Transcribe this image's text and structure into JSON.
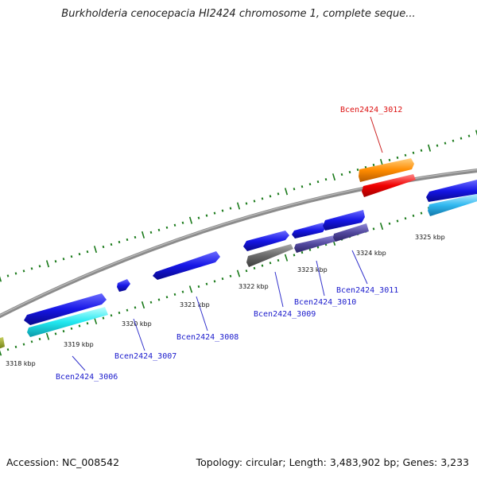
{
  "title": "Burkholderia cenocepacia HI2424 chromosome 1, complete seque...",
  "footer": {
    "accession": "Accession: NC_008542",
    "summary": "Topology: circular; Length: 3,483,902 bp; Genes: 3,233"
  },
  "colors": {
    "backbone": "#8c8c8c",
    "tick": "#1a7a1a",
    "label_blue": "#1a1acc",
    "label_red": "#dd1111",
    "leader_blue": "#3333cc",
    "leader_red": "#cc2222"
  },
  "positions": [
    "3318 kbp",
    "3319 kbp",
    "3320 kbp",
    "3321 kbp",
    "3322 kbp",
    "3323 kbp",
    "3324 kbp",
    "3325 kbp"
  ],
  "genes": [
    {
      "label": "Bcen2424_3006",
      "color": "blue"
    },
    {
      "label": "Bcen2424_3007",
      "color": "blue"
    },
    {
      "label": "Bcen2424_3008",
      "color": "blue"
    },
    {
      "label": "Bcen2424_3009",
      "color": "blue"
    },
    {
      "label": "Bcen2424_3010",
      "color": "blue"
    },
    {
      "label": "Bcen2424_3011",
      "color": "blue"
    },
    {
      "label": "Bcen2424_3012",
      "color": "red"
    }
  ]
}
